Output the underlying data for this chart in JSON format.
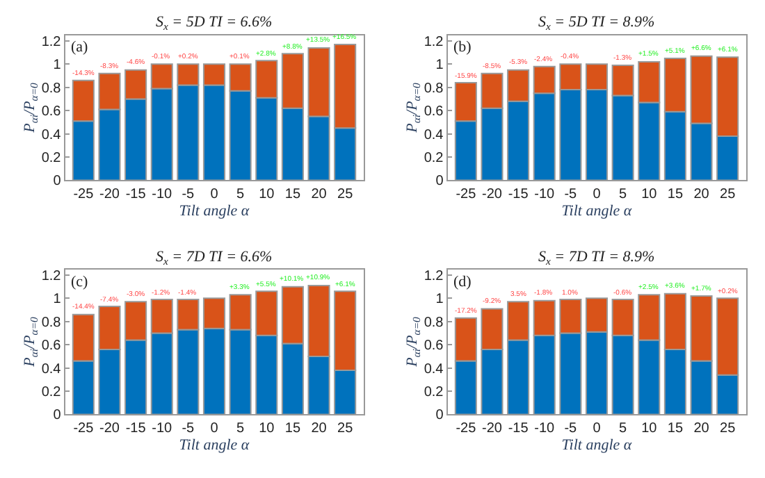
{
  "chart_data": [
    {
      "type": "bar",
      "stacked": true,
      "title": "S$_{x}$ = 5D TI = 6.6%",
      "xlabel": "Tilt angle α",
      "ylabel": "P$_{αi}$/P$_{α=0}$",
      "annotations": [
        "(a)",
        {
          "text": "-14.3%",
          "x": "-25",
          "y": 0.86
        },
        {
          "text": "-8.3%",
          "x": "-20",
          "y": 0.92
        },
        {
          "text": "-4.6%",
          "x": "-15",
          "y": 0.95
        },
        {
          "text": "-0.1%",
          "x": "-10",
          "y": 1.0
        },
        {
          "text": "+0.2%",
          "x": "-5",
          "y": 1.0
        },
        {
          "text": "+0.1%",
          "x": "5",
          "y": 1.0
        },
        {
          "text": "+2.8%",
          "x": "10",
          "y": 1.03
        },
        {
          "text": "+8.8%",
          "x": "15",
          "y": 1.09
        },
        {
          "text": "+13.5%",
          "x": "20",
          "y": 1.14
        },
        {
          "text": "+16.5%",
          "x": "25",
          "y": 1.17
        }
      ],
      "categories": [
        "-25",
        "-20",
        "-15",
        "-10",
        "-5",
        "0",
        "5",
        "10",
        "15",
        "20",
        "25"
      ],
      "series": [
        {
          "color": "#0072bd",
          "values": [
            0.51,
            0.61,
            0.7,
            0.79,
            0.82,
            0.82,
            0.77,
            0.71,
            0.62,
            0.55,
            0.45
          ]
        },
        {
          "color": "#d95319",
          "values": [
            0.35,
            0.31,
            0.25,
            0.21,
            0.18,
            0.18,
            0.23,
            0.32,
            0.47,
            0.59,
            0.72
          ]
        }
      ],
      "ylim": [
        0,
        1.25
      ],
      "yticks": [
        0,
        0.2,
        0.4,
        0.6,
        0.8,
        1,
        1.2
      ]
    },
    {
      "type": "bar",
      "stacked": true,
      "title": "S$_{x}$ = 5D TI = 8.9%",
      "xlabel": "Tilt angle α",
      "ylabel": "P$_{αi}$/P$_{α=0}$",
      "annotations": [
        "(b)",
        {
          "text": "-15.9%",
          "x": "-25",
          "y": 0.84
        },
        {
          "text": "-8.5%",
          "x": "-20",
          "y": 0.92
        },
        {
          "text": "-5.3%",
          "x": "-15",
          "y": 0.95
        },
        {
          "text": "-2.4%",
          "x": "-10",
          "y": 0.98
        },
        {
          "text": "-0.4%",
          "x": "-5",
          "y": 1.0
        },
        {
          "text": "-1.3%",
          "x": "5",
          "y": 0.99
        },
        {
          "text": "+1.5%",
          "x": "10",
          "y": 1.02
        },
        {
          "text": "+5.1%",
          "x": "15",
          "y": 1.05
        },
        {
          "text": "+6.6%",
          "x": "20",
          "y": 1.07
        },
        {
          "text": "+6.1%",
          "x": "25",
          "y": 1.06
        }
      ],
      "categories": [
        "-25",
        "-20",
        "-15",
        "-10",
        "-5",
        "0",
        "5",
        "10",
        "15",
        "20",
        "25"
      ],
      "series": [
        {
          "color": "#0072bd",
          "values": [
            0.51,
            0.62,
            0.68,
            0.75,
            0.78,
            0.78,
            0.73,
            0.67,
            0.59,
            0.49,
            0.38
          ]
        },
        {
          "color": "#d95319",
          "values": [
            0.33,
            0.3,
            0.27,
            0.23,
            0.22,
            0.22,
            0.26,
            0.35,
            0.46,
            0.58,
            0.68
          ]
        }
      ],
      "ylim": [
        0,
        1.25
      ],
      "yticks": [
        0,
        0.2,
        0.4,
        0.6,
        0.8,
        1,
        1.2
      ]
    },
    {
      "type": "bar",
      "stacked": true,
      "title": "S$_{x}$ = 7D TI = 6.6%",
      "xlabel": "Tilt angle α",
      "ylabel": "P$_{αi}$/P$_{α=0}$",
      "annotations": [
        "(c)",
        {
          "text": "-14.4%",
          "x": "-25",
          "y": 0.86
        },
        {
          "text": "-7.4%",
          "x": "-20",
          "y": 0.93
        },
        {
          "text": "-3.0%",
          "x": "-15",
          "y": 0.97
        },
        {
          "text": "-1.2%",
          "x": "-10",
          "y": 0.99
        },
        {
          "text": "-1.4%",
          "x": "-5",
          "y": 0.99
        },
        {
          "text": "+3.3%",
          "x": "5",
          "y": 1.03
        },
        {
          "text": "+5.5%",
          "x": "10",
          "y": 1.06
        },
        {
          "text": "+10.1%",
          "x": "15",
          "y": 1.1
        },
        {
          "text": "+10.9%",
          "x": "20",
          "y": 1.11
        },
        {
          "text": "+6.1%",
          "x": "25",
          "y": 1.06
        }
      ],
      "categories": [
        "-25",
        "-20",
        "-15",
        "-10",
        "-5",
        "0",
        "5",
        "10",
        "15",
        "20",
        "25"
      ],
      "series": [
        {
          "color": "#0072bd",
          "values": [
            0.46,
            0.56,
            0.64,
            0.7,
            0.73,
            0.74,
            0.73,
            0.68,
            0.61,
            0.5,
            0.38
          ]
        },
        {
          "color": "#d95319",
          "values": [
            0.4,
            0.37,
            0.33,
            0.29,
            0.26,
            0.26,
            0.3,
            0.38,
            0.49,
            0.61,
            0.68
          ]
        }
      ],
      "ylim": [
        0,
        1.25
      ],
      "yticks": [
        0,
        0.2,
        0.4,
        0.6,
        0.8,
        1,
        1.2
      ]
    },
    {
      "type": "bar",
      "stacked": true,
      "title": "S$_{x}$ = 7D TI = 8.9%",
      "xlabel": "Tilt angle α",
      "ylabel": "P$_{αi}$/P$_{α=0}$",
      "annotations": [
        "(d)",
        {
          "text": "-17.2%",
          "x": "-25",
          "y": 0.83
        },
        {
          "text": "-9.2%",
          "x": "-20",
          "y": 0.91
        },
        {
          "text": "3.5%",
          "x": "-15",
          "y": 0.97
        },
        {
          "text": "-1.8%",
          "x": "-10",
          "y": 0.98
        },
        {
          "text": "1.0%",
          "x": "-5",
          "y": 0.99
        },
        {
          "text": "-0.6%",
          "x": "5",
          "y": 0.99
        },
        {
          "text": "+2.5%",
          "x": "10",
          "y": 1.03
        },
        {
          "text": "+3.6%",
          "x": "15",
          "y": 1.04
        },
        {
          "text": "+1.7%",
          "x": "20",
          "y": 1.02
        },
        {
          "text": "+0.2%",
          "x": "25",
          "y": 1.0
        }
      ],
      "categories": [
        "-25",
        "-20",
        "-15",
        "-10",
        "-5",
        "0",
        "5",
        "10",
        "15",
        "20",
        "25"
      ],
      "series": [
        {
          "color": "#0072bd",
          "values": [
            0.46,
            0.56,
            0.64,
            0.68,
            0.7,
            0.71,
            0.68,
            0.64,
            0.56,
            0.46,
            0.34
          ]
        },
        {
          "color": "#d95319",
          "values": [
            0.37,
            0.35,
            0.33,
            0.3,
            0.29,
            0.29,
            0.31,
            0.39,
            0.48,
            0.56,
            0.66
          ]
        }
      ],
      "ylim": [
        0,
        1.25
      ],
      "yticks": [
        0,
        0.2,
        0.4,
        0.6,
        0.8,
        1,
        1.2
      ]
    }
  ]
}
